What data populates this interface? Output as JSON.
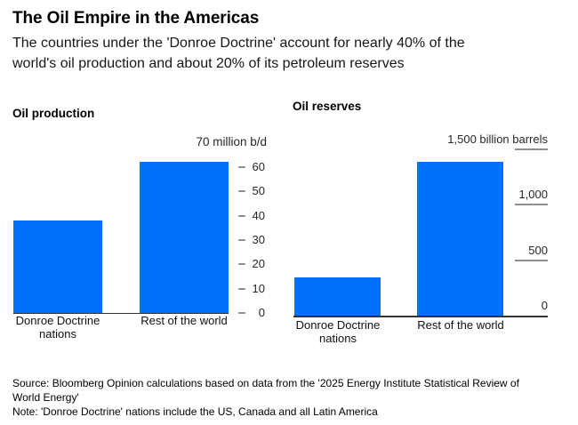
{
  "header": {
    "title": "The Oil Empire in the Americas",
    "subtitle_lines": [
      "The countries under the 'Donroe Doctrine' account for nearly 40% of the",
      "world's oil production and about 20% of its petroleum reserves"
    ]
  },
  "chart_data": [
    {
      "type": "bar",
      "title": "Oil production",
      "unit": "million b/d",
      "unit_label": "70 million b/d",
      "categories": [
        "Donroe Doctrine nations",
        "Rest of the world"
      ],
      "values": [
        38,
        62
      ],
      "ylim": [
        0,
        70
      ],
      "yticks": [
        {
          "value": 0,
          "label": "0"
        },
        {
          "value": 10,
          "label": "10"
        },
        {
          "value": 20,
          "label": "20"
        },
        {
          "value": 30,
          "label": "30"
        },
        {
          "value": 40,
          "label": "40"
        },
        {
          "value": 50,
          "label": "50"
        },
        {
          "value": 60,
          "label": "60"
        }
      ],
      "tick_style": "dash",
      "axis_side": "right",
      "grid": false,
      "legend": "none"
    },
    {
      "type": "bar",
      "title": "Oil reserves",
      "unit": "billion barrels",
      "categories": [
        "Donroe Doctrine nations",
        "Rest of the world"
      ],
      "values": [
        355,
        1390
      ],
      "ylim": [
        0,
        1500
      ],
      "yticks": [
        {
          "value": 0,
          "label": "0"
        },
        {
          "value": 500,
          "label": "500"
        },
        {
          "value": 1000,
          "label": "1,000"
        },
        {
          "value": 1500,
          "label": "1,500 billion barrels"
        }
      ],
      "tick_style": "underline",
      "axis_side": "right",
      "grid": false,
      "legend": "none"
    }
  ],
  "footer": {
    "source_lines": [
      "Source: Bloomberg Opinion calculations based on data from the '2025 Energy Institute Statistical Review of",
      "World Energy'"
    ],
    "note_line": "Note: 'Donroe Doctrine' nations include the US, Canada and all Latin America"
  },
  "colors": {
    "bar_blue": "#0071fb",
    "tick_gray": "#8e8e8e",
    "axis_dark": "#333333",
    "tick_text": "#262626"
  }
}
